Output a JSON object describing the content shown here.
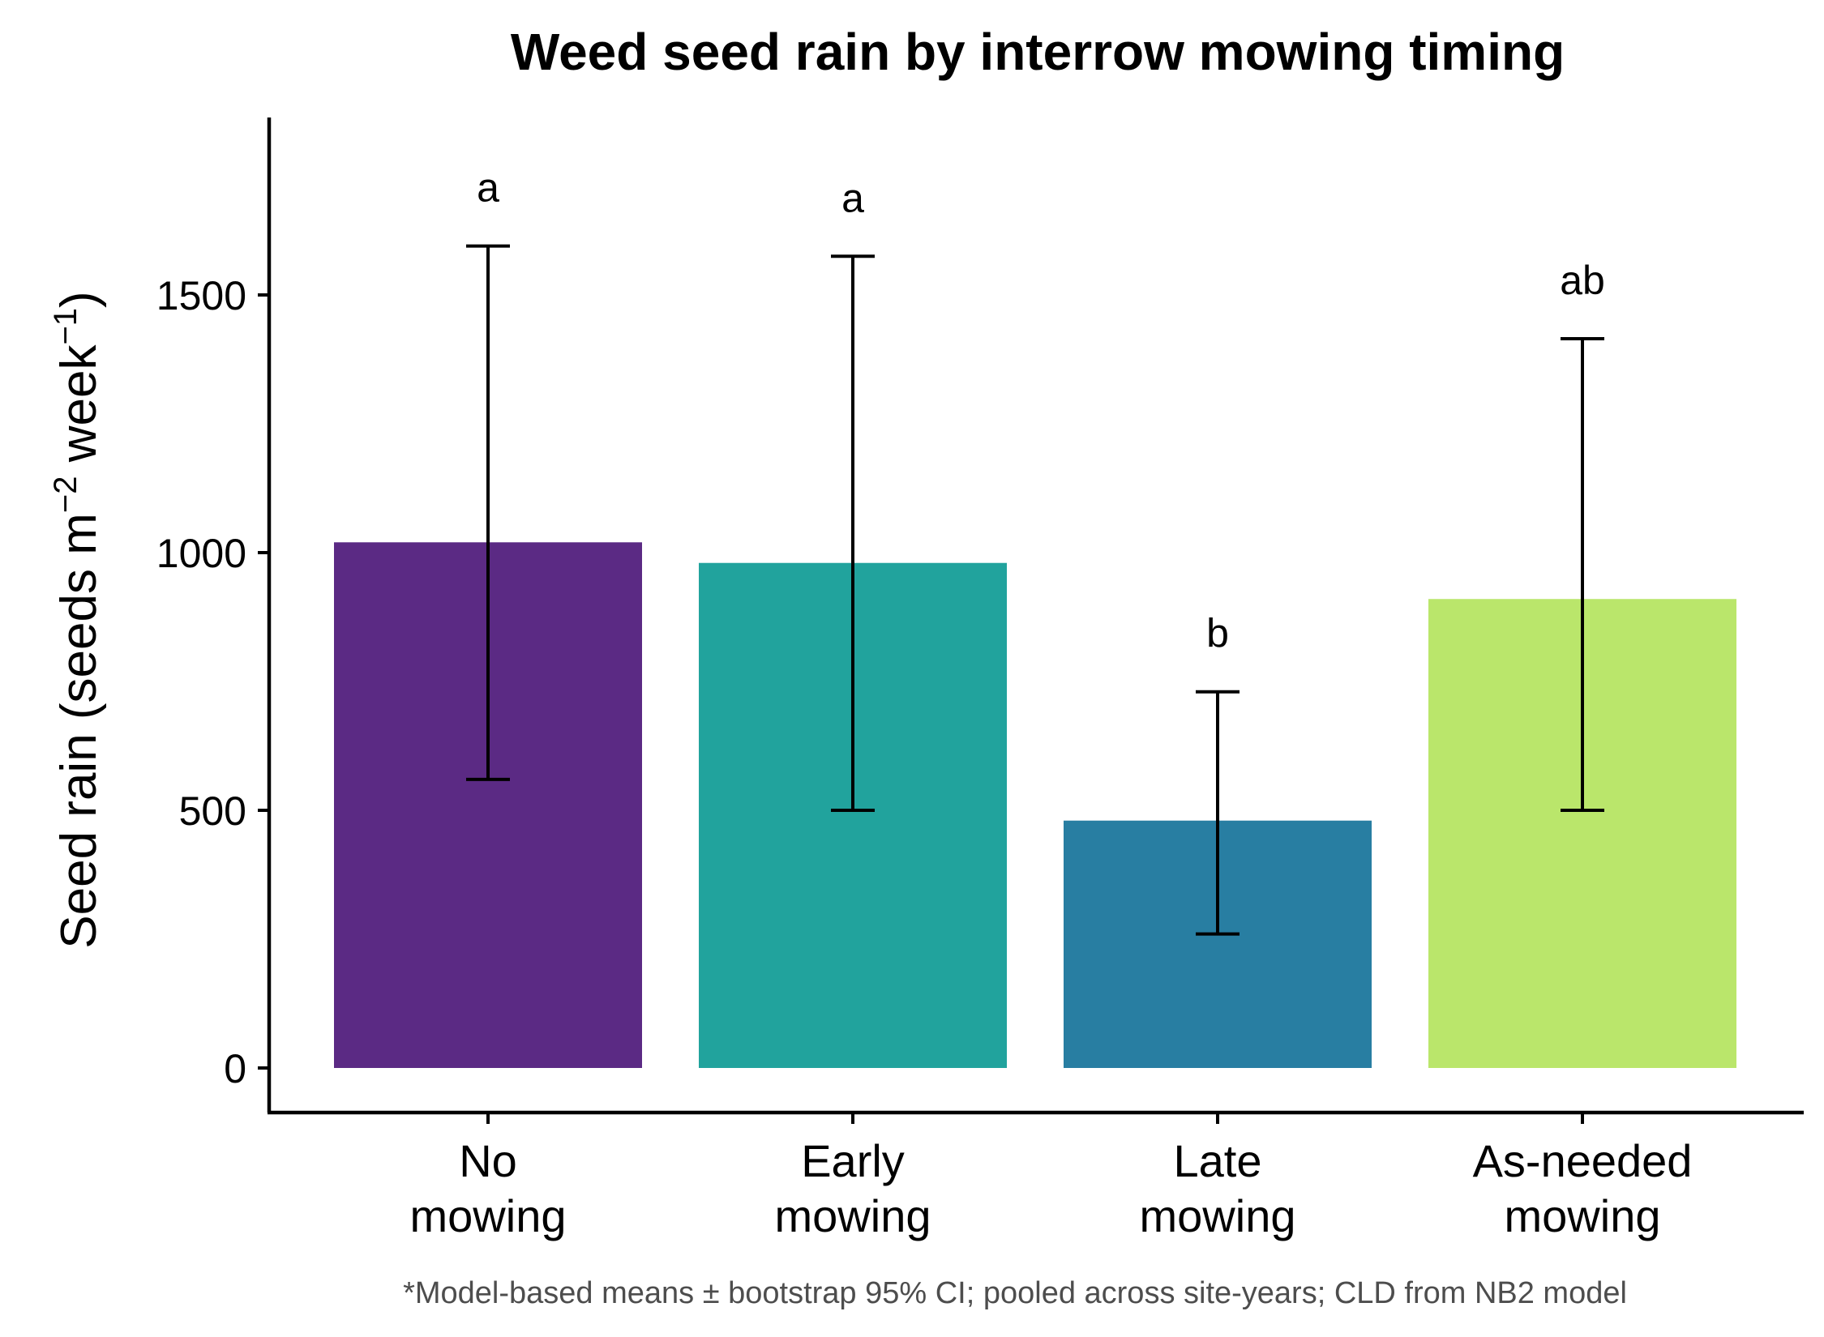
{
  "chart_data": {
    "type": "bar",
    "title": "Weed seed rain by interrow mowing timing",
    "xlabel": "",
    "ylabel": {
      "main": "Seed rain (seeds m",
      "sup1": "−2",
      "mid": " week",
      "sup2": "−1",
      "end": ")"
    },
    "ylim": [
      -90,
      1850
    ],
    "yticks": [
      0,
      500,
      1000,
      1500
    ],
    "categories": [
      [
        "No",
        "mowing"
      ],
      [
        "Early",
        "mowing"
      ],
      [
        "Late",
        "mowing"
      ],
      [
        "As-needed",
        "mowing"
      ]
    ],
    "values": [
      1020,
      980,
      480,
      910
    ],
    "ci_lower": [
      560,
      500,
      260,
      500
    ],
    "ci_upper": [
      1595,
      1575,
      730,
      1415
    ],
    "cld_letters": [
      "a",
      "a",
      "b",
      "ab"
    ],
    "colors": [
      "#5b2a84",
      "#21a39d",
      "#287ea2",
      "#bae66b"
    ],
    "footnote": "*Model-based means ± bootstrap 95% CI; pooled across site-years; CLD from NB2 model"
  }
}
